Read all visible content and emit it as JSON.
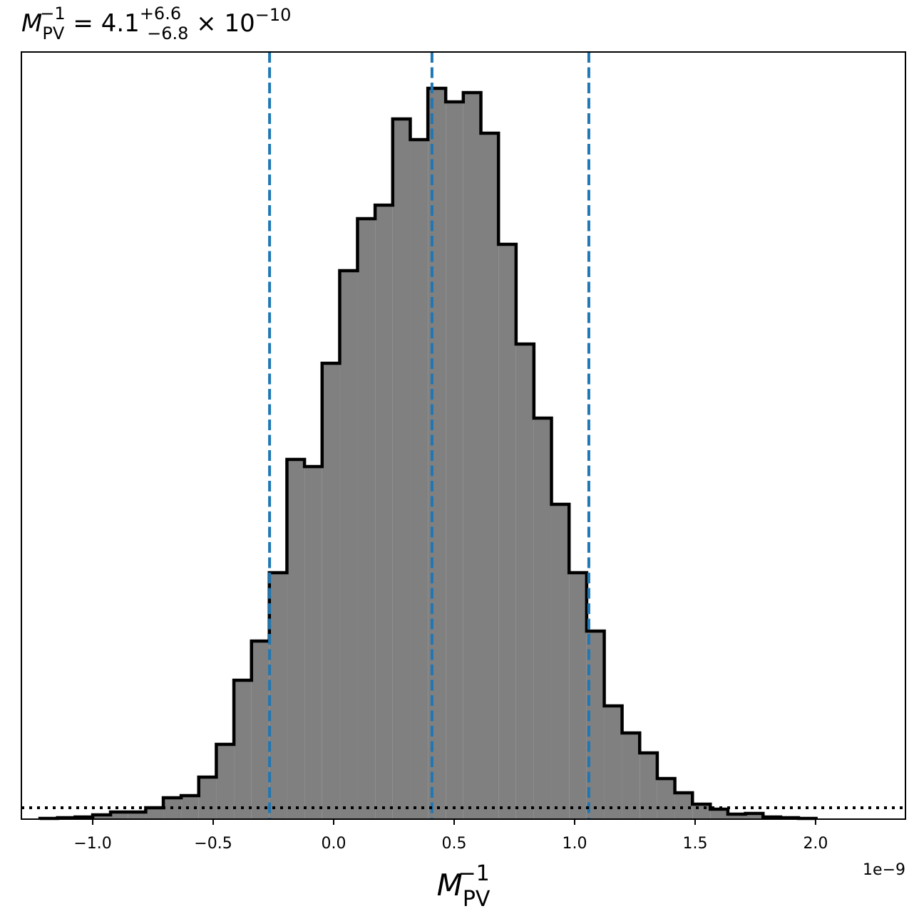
{
  "chart_data": {
    "type": "histogram",
    "title": {
      "symbol": "M",
      "sub": "PV",
      "sup": "−1",
      "text": " = 4.1",
      "upper": "+6.6",
      "lower": "−6.8",
      "times": " × 10",
      "exp": "−10"
    },
    "x_label": {
      "symbol": "M",
      "sub": "PV",
      "sup": "−1"
    },
    "x_offset": "1e−9",
    "bins": [
      -1.219,
      -1.146,
      -1.073,
      -1.0,
      -0.926,
      -0.853,
      -0.78,
      -0.707,
      -0.633,
      -0.56,
      -0.487,
      -0.414,
      -0.341,
      -0.267,
      -0.194,
      -0.121,
      -0.048,
      0.025,
      0.099,
      0.172,
      0.245,
      0.318,
      0.391,
      0.465,
      0.538,
      0.611,
      0.684,
      0.757,
      0.831,
      0.904,
      0.977,
      1.05,
      1.123,
      1.197,
      1.27,
      1.343,
      1.416,
      1.489,
      1.563,
      1.636,
      1.709,
      1.782,
      1.855,
      1.929,
      2.002
    ],
    "values": [
      1,
      2,
      3,
      6,
      10,
      10,
      16,
      30,
      33,
      59,
      105,
      195,
      250,
      346,
      505,
      495,
      640,
      770,
      843,
      862,
      983,
      954,
      1026,
      1007,
      1020,
      963,
      807,
      667,
      563,
      442,
      346,
      264,
      159,
      121,
      93,
      57,
      37,
      21,
      14,
      7,
      8,
      3,
      2,
      1
    ],
    "color": "#808080",
    "edge_color": "#000000",
    "xlim": [
      -1.296,
      2.373
    ],
    "ylim": [
      0,
      1077
    ],
    "xticks": [
      {
        "value": -1.0,
        "label": "−1.0"
      },
      {
        "value": -0.5,
        "label": "−0.5"
      },
      {
        "value": 0.0,
        "label": "0.0"
      },
      0.5,
      {
        "value": 1.0,
        "label": "1.0"
      },
      1.5,
      {
        "value": 2.0,
        "label": "2.0"
      }
    ],
    "vlines": {
      "values": [
        -0.266,
        0.408,
        1.059
      ],
      "color": "#1f77b4"
    },
    "hline": {
      "value": 16,
      "color": "#000000"
    }
  }
}
